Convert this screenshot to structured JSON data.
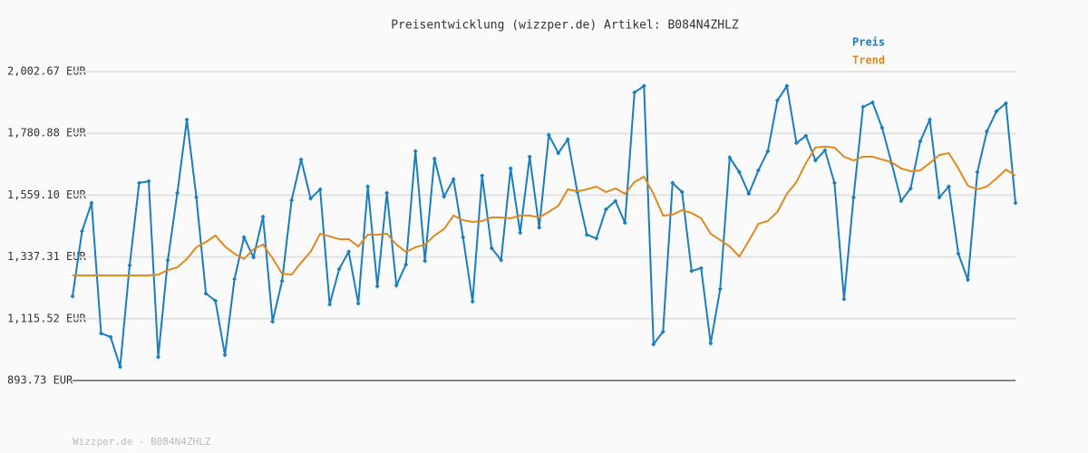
{
  "chart_data": {
    "type": "line",
    "title": "Preisentwicklung (wizzper.de) Artikel: B084N4ZHLZ",
    "footer": "Wizzper.de - B084N4ZHLZ",
    "ylim": [
      893.73,
      2002.67
    ],
    "yticks": [
      {
        "value": 893.73,
        "label": "893.73 EUR"
      },
      {
        "value": 1115.52,
        "label": "1,115.52 EUR"
      },
      {
        "value": 1337.31,
        "label": "1,337.31 EUR"
      },
      {
        "value": 1559.1,
        "label": "1,559.10 EUR"
      },
      {
        "value": 1780.88,
        "label": "1,780.88 EUR"
      },
      {
        "value": 2002.67,
        "label": "2,002.67 EUR"
      }
    ],
    "grid": true,
    "series": [
      {
        "name": "Preis",
        "color": "#1a7dbd",
        "markers": true,
        "values": [
          1196,
          1430,
          1531,
          1063,
          1050,
          943,
          1307,
          1603,
          1609,
          978,
          1326,
          1567,
          1830,
          1551,
          1206,
          1180,
          985,
          1258,
          1408,
          1336,
          1482,
          1105,
          1251,
          1541,
          1687,
          1547,
          1580,
          1167,
          1294,
          1356,
          1170,
          1590,
          1232,
          1567,
          1235,
          1310,
          1717,
          1323,
          1690,
          1554,
          1616,
          1408,
          1177,
          1629,
          1369,
          1326,
          1655,
          1424,
          1697,
          1443,
          1775,
          1710,
          1759,
          1570,
          1417,
          1404,
          1508,
          1538,
          1460,
          1928,
          1951,
          1024,
          1069,
          1603,
          1570,
          1287,
          1297,
          1027,
          1222,
          1694,
          1642,
          1564,
          1648,
          1717,
          1899,
          1951,
          1746,
          1772,
          1684,
          1720,
          1603,
          1186,
          1551,
          1876,
          1892,
          1801,
          1674,
          1538,
          1583,
          1752,
          1830,
          1551,
          1590,
          1349,
          1255,
          1642,
          1788,
          1860,
          1889,
          1531
        ]
      },
      {
        "name": "Trend",
        "color": "#e08a1e",
        "markers": false,
        "values": [
          1271,
          1271,
          1271,
          1271,
          1271,
          1271,
          1271,
          1271,
          1271,
          1274,
          1290,
          1300,
          1330,
          1372,
          1391,
          1414,
          1375,
          1349,
          1330,
          1365,
          1382,
          1333,
          1277,
          1274,
          1317,
          1356,
          1421,
          1411,
          1401,
          1401,
          1375,
          1417,
          1417,
          1421,
          1382,
          1356,
          1372,
          1382,
          1414,
          1437,
          1486,
          1469,
          1463,
          1466,
          1479,
          1479,
          1476,
          1486,
          1486,
          1479,
          1499,
          1521,
          1580,
          1573,
          1580,
          1590,
          1570,
          1583,
          1564,
          1606,
          1625,
          1564,
          1486,
          1489,
          1505,
          1495,
          1476,
          1421,
          1398,
          1375,
          1339,
          1395,
          1456,
          1466,
          1499,
          1564,
          1606,
          1674,
          1730,
          1733,
          1730,
          1697,
          1684,
          1697,
          1697,
          1687,
          1677,
          1655,
          1645,
          1648,
          1674,
          1703,
          1710,
          1655,
          1593,
          1580,
          1590,
          1619,
          1651,
          1629
        ]
      }
    ]
  }
}
